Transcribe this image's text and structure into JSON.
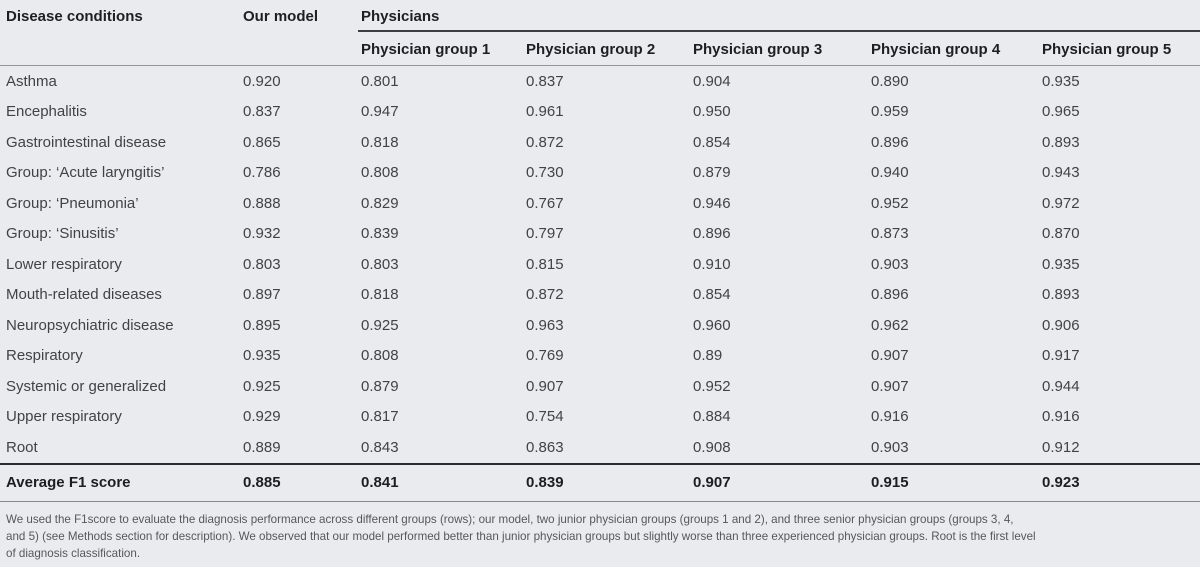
{
  "page": {
    "background": "#e9ebee"
  },
  "table": {
    "header": {
      "disease_conditions": "Disease conditions",
      "our_model": "Our model",
      "physicians": "Physicians",
      "physician_groups": [
        "Physician group 1",
        "Physician group 2",
        "Physician group 3",
        "Physician group 4",
        "Physician group 5"
      ]
    },
    "rows": [
      {
        "label": "Asthma",
        "values": [
          "0.920",
          "0.801",
          "0.837",
          "0.904",
          "0.890",
          "0.935"
        ]
      },
      {
        "label": "Encephalitis",
        "values": [
          "0.837",
          "0.947",
          "0.961",
          "0.950",
          "0.959",
          "0.965"
        ]
      },
      {
        "label": "Gastrointestinal disease",
        "values": [
          "0.865",
          "0.818",
          "0.872",
          "0.854",
          "0.896",
          "0.893"
        ]
      },
      {
        "label": "Group: ‘Acute laryngitis’",
        "values": [
          "0.786",
          "0.808",
          "0.730",
          "0.879",
          "0.940",
          "0.943"
        ]
      },
      {
        "label": "Group: ‘Pneumonia’",
        "values": [
          "0.888",
          "0.829",
          "0.767",
          "0.946",
          "0.952",
          "0.972"
        ]
      },
      {
        "label": "Group: ‘Sinusitis’",
        "values": [
          "0.932",
          "0.839",
          "0.797",
          "0.896",
          "0.873",
          "0.870"
        ]
      },
      {
        "label": "Lower respiratory",
        "values": [
          "0.803",
          "0.803",
          "0.815",
          "0.910",
          "0.903",
          "0.935"
        ]
      },
      {
        "label": "Mouth-related diseases",
        "values": [
          "0.897",
          "0.818",
          "0.872",
          "0.854",
          "0.896",
          "0.893"
        ]
      },
      {
        "label": "Neuropsychiatric disease",
        "values": [
          "0.895",
          "0.925",
          "0.963",
          "0.960",
          "0.962",
          "0.906"
        ]
      },
      {
        "label": "Respiratory",
        "values": [
          "0.935",
          "0.808",
          "0.769",
          "0.89",
          "0.907",
          "0.917"
        ]
      },
      {
        "label": "Systemic or generalized",
        "values": [
          "0.925",
          "0.879",
          "0.907",
          "0.952",
          "0.907",
          "0.944"
        ]
      },
      {
        "label": "Upper respiratory",
        "values": [
          "0.929",
          "0.817",
          "0.754",
          "0.884",
          "0.916",
          "0.916"
        ]
      },
      {
        "label": "Root",
        "values": [
          "0.889",
          "0.843",
          "0.863",
          "0.908",
          "0.903",
          "0.912"
        ]
      }
    ],
    "footer": {
      "label": "Average F1 score",
      "values": [
        "0.885",
        "0.841",
        "0.839",
        "0.907",
        "0.915",
        "0.923"
      ]
    }
  },
  "footnote": {
    "lines": [
      "We used the F1score to evaluate the diagnosis performance across different groups (rows); our model, two junior physician groups (groups 1 and 2), and three senior physician groups (groups 3, 4,",
      "and 5) (see Methods section for description). We observed that our model performed better than junior physician groups but slightly worse than three experienced physician groups. Root is the first level",
      "of diagnosis classification."
    ]
  }
}
